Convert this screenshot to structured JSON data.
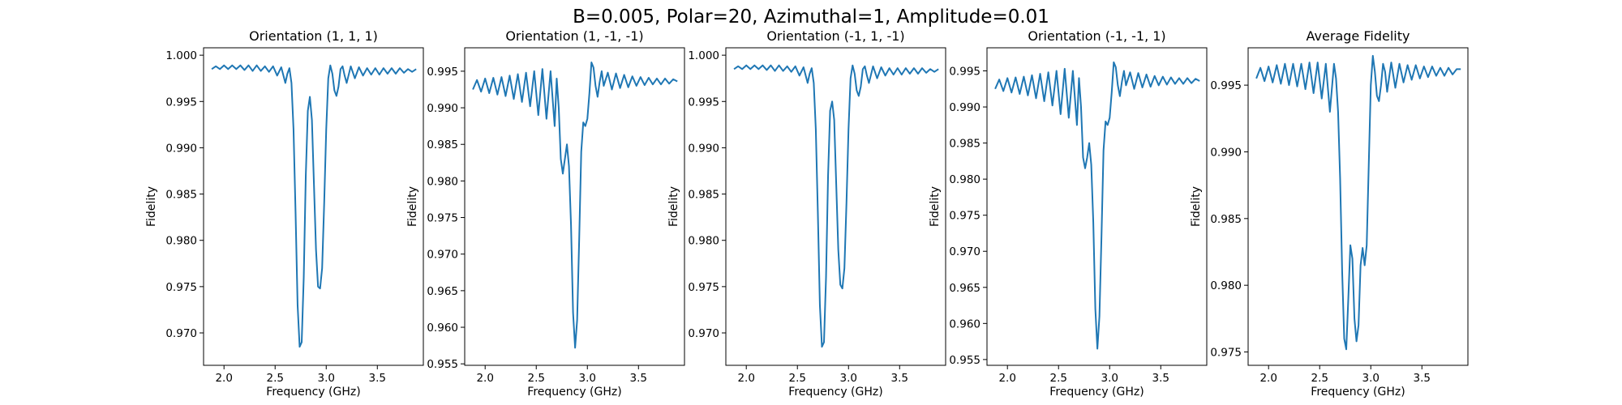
{
  "figure_title": "B=0.005, Polar=20, Azimuthal=1, Amplitude=0.01",
  "chart_data": [
    {
      "type": "line",
      "title": "Orientation (1, 1, 1)",
      "xlabel": "Frequency (GHz)",
      "ylabel": "Fidelity",
      "xlim": [
        1.8,
        3.95
      ],
      "ylim": [
        0.9665,
        1.0008
      ],
      "xticks": [
        2.0,
        2.5,
        3.0,
        3.5
      ],
      "xtick_labels": [
        "2.0",
        "2.5",
        "3.0",
        "3.5"
      ],
      "yticks": [
        0.97,
        0.975,
        0.98,
        0.985,
        0.99,
        0.995,
        1.0
      ],
      "ytick_labels": [
        "0.970",
        "0.975",
        "0.980",
        "0.985",
        "0.990",
        "0.995",
        "1.000"
      ],
      "grid": false,
      "series": [
        {
          "color": "#1f77b4",
          "x": [
            1.88,
            1.92,
            1.96,
            2.0,
            2.04,
            2.08,
            2.12,
            2.16,
            2.2,
            2.24,
            2.28,
            2.32,
            2.36,
            2.4,
            2.44,
            2.48,
            2.52,
            2.56,
            2.6,
            2.62,
            2.64,
            2.66,
            2.68,
            2.7,
            2.72,
            2.74,
            2.76,
            2.78,
            2.8,
            2.82,
            2.84,
            2.86,
            2.88,
            2.9,
            2.92,
            2.94,
            2.96,
            2.98,
            3.0,
            3.02,
            3.04,
            3.06,
            3.08,
            3.1,
            3.12,
            3.14,
            3.16,
            3.18,
            3.2,
            3.24,
            3.28,
            3.32,
            3.36,
            3.4,
            3.44,
            3.48,
            3.52,
            3.56,
            3.6,
            3.64,
            3.68,
            3.72,
            3.76,
            3.8,
            3.84,
            3.88
          ],
          "y": [
            0.9985,
            0.9988,
            0.9985,
            0.9989,
            0.9985,
            0.9989,
            0.9985,
            0.9989,
            0.9984,
            0.9989,
            0.9983,
            0.9989,
            0.9983,
            0.9988,
            0.9982,
            0.9988,
            0.9978,
            0.9987,
            0.997,
            0.998,
            0.9986,
            0.997,
            0.992,
            0.983,
            0.973,
            0.9685,
            0.969,
            0.976,
            0.987,
            0.994,
            0.9955,
            0.993,
            0.986,
            0.979,
            0.975,
            0.9748,
            0.977,
            0.984,
            0.992,
            0.9975,
            0.9989,
            0.998,
            0.9962,
            0.9956,
            0.9966,
            0.9985,
            0.9988,
            0.9978,
            0.997,
            0.9988,
            0.9975,
            0.9987,
            0.9978,
            0.9986,
            0.9979,
            0.9986,
            0.9979,
            0.9986,
            0.998,
            0.9986,
            0.998,
            0.9986,
            0.9981,
            0.9985,
            0.9982,
            0.9985
          ]
        }
      ]
    },
    {
      "type": "line",
      "title": "Orientation (1, -1, -1)",
      "xlabel": "Frequency (GHz)",
      "ylabel": "Fidelity",
      "xlim": [
        1.8,
        3.95
      ],
      "ylim": [
        0.9548,
        0.9982
      ],
      "xticks": [
        2.0,
        2.5,
        3.0,
        3.5
      ],
      "xtick_labels": [
        "2.0",
        "2.5",
        "3.0",
        "3.5"
      ],
      "yticks": [
        0.955,
        0.96,
        0.965,
        0.97,
        0.975,
        0.98,
        0.985,
        0.99,
        0.995
      ],
      "ytick_labels": [
        "0.955",
        "0.960",
        "0.965",
        "0.970",
        "0.975",
        "0.980",
        "0.985",
        "0.990",
        "0.995"
      ],
      "grid": false,
      "series": [
        {
          "color": "#1f77b4",
          "x": [
            1.88,
            1.92,
            1.96,
            2.0,
            2.04,
            2.08,
            2.12,
            2.16,
            2.2,
            2.24,
            2.28,
            2.32,
            2.36,
            2.4,
            2.44,
            2.48,
            2.52,
            2.56,
            2.6,
            2.64,
            2.68,
            2.7,
            2.72,
            2.74,
            2.76,
            2.78,
            2.8,
            2.82,
            2.84,
            2.86,
            2.88,
            2.9,
            2.92,
            2.94,
            2.96,
            2.98,
            3.0,
            3.02,
            3.04,
            3.06,
            3.08,
            3.1,
            3.12,
            3.14,
            3.16,
            3.2,
            3.24,
            3.28,
            3.32,
            3.36,
            3.4,
            3.44,
            3.48,
            3.52,
            3.56,
            3.6,
            3.64,
            3.68,
            3.72,
            3.76,
            3.8,
            3.84,
            3.88
          ],
          "y": [
            0.9925,
            0.9938,
            0.9922,
            0.994,
            0.992,
            0.9941,
            0.9918,
            0.9942,
            0.9916,
            0.9944,
            0.9912,
            0.9946,
            0.9908,
            0.9948,
            0.9902,
            0.995,
            0.989,
            0.9953,
            0.9885,
            0.995,
            0.9875,
            0.994,
            0.99,
            0.983,
            0.981,
            0.983,
            0.985,
            0.982,
            0.974,
            0.962,
            0.9572,
            0.961,
            0.972,
            0.984,
            0.988,
            0.9875,
            0.9885,
            0.992,
            0.9962,
            0.9955,
            0.993,
            0.9915,
            0.9935,
            0.995,
            0.993,
            0.9948,
            0.9925,
            0.9947,
            0.9927,
            0.9945,
            0.9928,
            0.9943,
            0.993,
            0.9942,
            0.9931,
            0.9941,
            0.9932,
            0.994,
            0.9932,
            0.994,
            0.9933,
            0.9939,
            0.9936
          ]
        }
      ]
    },
    {
      "type": "line",
      "title": "Orientation (-1, 1, -1)",
      "xlabel": "Frequency (GHz)",
      "ylabel": "Fidelity",
      "xlim": [
        1.8,
        3.95
      ],
      "ylim": [
        0.9665,
        1.0008
      ],
      "xticks": [
        2.0,
        2.5,
        3.0,
        3.5
      ],
      "xtick_labels": [
        "2.0",
        "2.5",
        "3.0",
        "3.5"
      ],
      "yticks": [
        0.97,
        0.975,
        0.98,
        0.985,
        0.99,
        0.995,
        1.0
      ],
      "ytick_labels": [
        "0.970",
        "0.975",
        "0.980",
        "0.985",
        "0.990",
        "0.995",
        "1.000"
      ],
      "grid": false,
      "series": [
        {
          "color": "#1f77b4",
          "x": [
            1.88,
            1.92,
            1.96,
            2.0,
            2.04,
            2.08,
            2.12,
            2.16,
            2.2,
            2.24,
            2.28,
            2.32,
            2.36,
            2.4,
            2.44,
            2.48,
            2.52,
            2.56,
            2.6,
            2.62,
            2.64,
            2.66,
            2.68,
            2.7,
            2.72,
            2.74,
            2.76,
            2.78,
            2.8,
            2.82,
            2.84,
            2.86,
            2.88,
            2.9,
            2.92,
            2.94,
            2.96,
            2.98,
            3.0,
            3.02,
            3.04,
            3.06,
            3.08,
            3.1,
            3.12,
            3.14,
            3.16,
            3.18,
            3.2,
            3.24,
            3.28,
            3.32,
            3.36,
            3.4,
            3.44,
            3.48,
            3.52,
            3.56,
            3.6,
            3.64,
            3.68,
            3.72,
            3.76,
            3.8,
            3.84,
            3.88
          ],
          "y": [
            0.9985,
            0.9988,
            0.9985,
            0.9989,
            0.9985,
            0.9989,
            0.9985,
            0.9989,
            0.9984,
            0.9989,
            0.9983,
            0.9989,
            0.9983,
            0.9988,
            0.9982,
            0.9988,
            0.9978,
            0.9987,
            0.997,
            0.998,
            0.9986,
            0.997,
            0.992,
            0.983,
            0.973,
            0.9685,
            0.969,
            0.976,
            0.987,
            0.994,
            0.995,
            0.993,
            0.986,
            0.979,
            0.9752,
            0.9748,
            0.977,
            0.984,
            0.992,
            0.9975,
            0.9989,
            0.998,
            0.9962,
            0.9956,
            0.9966,
            0.9985,
            0.9988,
            0.9978,
            0.997,
            0.9988,
            0.9975,
            0.9987,
            0.9978,
            0.9986,
            0.9979,
            0.9986,
            0.9979,
            0.9986,
            0.998,
            0.9986,
            0.998,
            0.9986,
            0.9981,
            0.9985,
            0.9982,
            0.9985
          ]
        }
      ]
    },
    {
      "type": "line",
      "title": "Orientation (-1, -1, 1)",
      "xlabel": "Frequency (GHz)",
      "ylabel": "Fidelity",
      "xlim": [
        1.8,
        3.95
      ],
      "ylim": [
        0.9542,
        0.9982
      ],
      "xticks": [
        2.0,
        2.5,
        3.0,
        3.5
      ],
      "xtick_labels": [
        "2.0",
        "2.5",
        "3.0",
        "3.5"
      ],
      "yticks": [
        0.955,
        0.96,
        0.965,
        0.97,
        0.975,
        0.98,
        0.985,
        0.99,
        0.995
      ],
      "ytick_labels": [
        "0.955",
        "0.960",
        "0.965",
        "0.970",
        "0.975",
        "0.980",
        "0.985",
        "0.990",
        "0.995"
      ],
      "grid": false,
      "series": [
        {
          "color": "#1f77b4",
          "x": [
            1.88,
            1.92,
            1.96,
            2.0,
            2.04,
            2.08,
            2.12,
            2.16,
            2.2,
            2.24,
            2.28,
            2.32,
            2.36,
            2.4,
            2.44,
            2.48,
            2.52,
            2.56,
            2.6,
            2.64,
            2.68,
            2.7,
            2.72,
            2.74,
            2.76,
            2.78,
            2.8,
            2.82,
            2.84,
            2.86,
            2.88,
            2.9,
            2.92,
            2.94,
            2.96,
            2.98,
            3.0,
            3.02,
            3.04,
            3.06,
            3.08,
            3.1,
            3.12,
            3.14,
            3.16,
            3.2,
            3.24,
            3.28,
            3.32,
            3.36,
            3.4,
            3.44,
            3.48,
            3.52,
            3.56,
            3.6,
            3.64,
            3.68,
            3.72,
            3.76,
            3.8,
            3.84,
            3.88
          ],
          "y": [
            0.9925,
            0.9938,
            0.9922,
            0.994,
            0.992,
            0.9941,
            0.9918,
            0.9942,
            0.9916,
            0.9944,
            0.9912,
            0.9946,
            0.9908,
            0.9948,
            0.9902,
            0.995,
            0.989,
            0.9953,
            0.9885,
            0.995,
            0.9875,
            0.994,
            0.99,
            0.983,
            0.9815,
            0.983,
            0.985,
            0.982,
            0.974,
            0.962,
            0.9565,
            0.961,
            0.972,
            0.984,
            0.988,
            0.9875,
            0.9885,
            0.992,
            0.9962,
            0.9955,
            0.993,
            0.9915,
            0.9935,
            0.995,
            0.993,
            0.9948,
            0.9925,
            0.9947,
            0.9927,
            0.9945,
            0.9928,
            0.9943,
            0.993,
            0.9942,
            0.9931,
            0.9941,
            0.9932,
            0.994,
            0.9932,
            0.994,
            0.9933,
            0.9939,
            0.9936
          ]
        }
      ]
    },
    {
      "type": "line",
      "title": "Average Fidelity",
      "xlabel": "Frequency (GHz)",
      "ylabel": "Fidelity",
      "xlim": [
        1.8,
        3.95
      ],
      "ylim": [
        0.974,
        0.9978
      ],
      "xticks": [
        2.0,
        2.5,
        3.0,
        3.5
      ],
      "xtick_labels": [
        "2.0",
        "2.5",
        "3.0",
        "3.5"
      ],
      "yticks": [
        0.975,
        0.98,
        0.985,
        0.99,
        0.995
      ],
      "ytick_labels": [
        "0.975",
        "0.980",
        "0.985",
        "0.990",
        "0.995"
      ],
      "grid": false,
      "series": [
        {
          "color": "#1f77b4",
          "x": [
            1.88,
            1.92,
            1.96,
            2.0,
            2.04,
            2.08,
            2.12,
            2.16,
            2.2,
            2.24,
            2.28,
            2.32,
            2.36,
            2.4,
            2.44,
            2.48,
            2.52,
            2.56,
            2.6,
            2.64,
            2.66,
            2.68,
            2.7,
            2.72,
            2.74,
            2.76,
            2.78,
            2.8,
            2.82,
            2.84,
            2.86,
            2.88,
            2.9,
            2.92,
            2.94,
            2.96,
            2.98,
            3.0,
            3.02,
            3.04,
            3.06,
            3.08,
            3.1,
            3.12,
            3.14,
            3.16,
            3.2,
            3.24,
            3.28,
            3.32,
            3.36,
            3.4,
            3.44,
            3.48,
            3.52,
            3.56,
            3.6,
            3.64,
            3.68,
            3.72,
            3.76,
            3.8,
            3.84,
            3.88
          ],
          "y": [
            0.9955,
            0.9963,
            0.9953,
            0.9964,
            0.9952,
            0.9965,
            0.9951,
            0.9966,
            0.995,
            0.9966,
            0.9949,
            0.9966,
            0.9947,
            0.9967,
            0.9944,
            0.9967,
            0.994,
            0.9966,
            0.993,
            0.9966,
            0.9955,
            0.993,
            0.988,
            0.981,
            0.976,
            0.9752,
            0.979,
            0.983,
            0.982,
            0.9775,
            0.9758,
            0.977,
            0.9815,
            0.9828,
            0.9815,
            0.983,
            0.989,
            0.995,
            0.9972,
            0.996,
            0.9942,
            0.9938,
            0.995,
            0.9966,
            0.996,
            0.9945,
            0.9967,
            0.9948,
            0.9966,
            0.9952,
            0.9965,
            0.9954,
            0.9965,
            0.9955,
            0.9964,
            0.9956,
            0.9964,
            0.9957,
            0.9963,
            0.9957,
            0.9963,
            0.9958,
            0.9962,
            0.9962
          ]
        }
      ]
    }
  ]
}
